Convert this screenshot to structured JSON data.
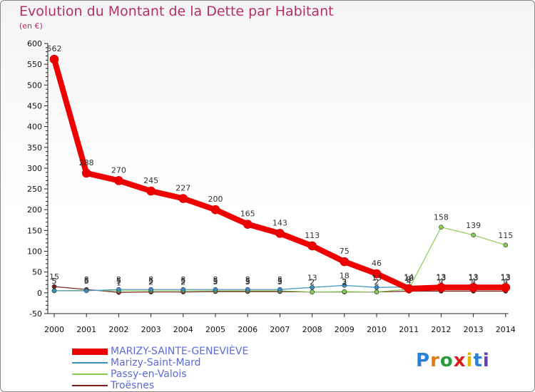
{
  "title": "Evolution du Montant de la Dette par Habitant",
  "subtitle": "(en €)",
  "logo": {
    "text": "Proxiti"
  },
  "chart_data": {
    "type": "line",
    "title": "Evolution du Montant de la Dette par Habitant",
    "ylabel": "(en €)",
    "ylim": [
      -50,
      600
    ],
    "yticks": [
      -50,
      0,
      50,
      100,
      150,
      200,
      250,
      300,
      350,
      400,
      450,
      500,
      550,
      600
    ],
    "categories": [
      "2000",
      "2001",
      "2002",
      "2003",
      "2004",
      "2005",
      "2006",
      "2007",
      "2008",
      "2009",
      "2010",
      "2011",
      "2012",
      "2013",
      "2014"
    ],
    "grid": false,
    "series": [
      {
        "name": "MARIZY-SAINTE-GENEVIÈVE",
        "color": "#ee0000",
        "values": [
          562,
          288,
          270,
          245,
          227,
          200,
          165,
          143,
          113,
          75,
          46,
          10,
          13,
          13,
          13
        ]
      },
      {
        "name": "Marizy-Saint-Mard",
        "color": "#3a8fc2",
        "values": [
          5,
          5,
          8,
          8,
          8,
          8,
          8,
          8,
          13,
          18,
          13,
          14,
          13,
          13,
          13
        ]
      },
      {
        "name": "Passy-en-Valois",
        "color": "#88cc55",
        "values": [
          5,
          6,
          5,
          5,
          5,
          5,
          5,
          5,
          2,
          3,
          2,
          9,
          158,
          139,
          115
        ]
      },
      {
        "name": "Troësnes",
        "color": "#7a1e1e",
        "values": [
          15,
          8,
          1,
          2,
          2,
          3,
          3,
          3,
          2,
          2,
          2,
          4,
          4,
          4,
          4
        ]
      }
    ]
  }
}
